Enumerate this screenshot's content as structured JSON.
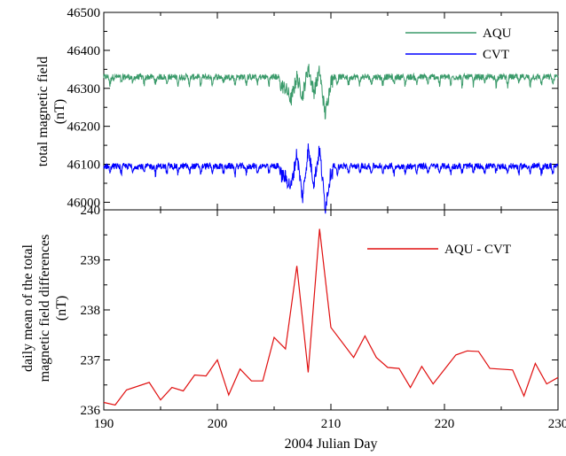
{
  "chart_data": [
    {
      "type": "line",
      "panel": "top",
      "ylabel_lines": [
        "total magnetic field",
        "(nT)"
      ],
      "xlim": [
        190,
        230
      ],
      "ylim": [
        45980,
        46500
      ],
      "yticks": [
        46000,
        46100,
        46200,
        46300,
        46400,
        46500
      ],
      "y_tick_labels": [
        "46000",
        "46100",
        "46200",
        "46300",
        "46400",
        "46500"
      ],
      "grid": false,
      "legend_placement": "top-right",
      "series": [
        {
          "name": "AQU",
          "color": "#3a9a6a",
          "baseline": 46330,
          "x": [
            190,
            195,
            200,
            203,
            205,
            206,
            206.5,
            207,
            207.5,
            208,
            208.5,
            209,
            209.5,
            210,
            215,
            220,
            225,
            230
          ],
          "y": [
            46330,
            46328,
            46330,
            46325,
            46320,
            46300,
            46270,
            46330,
            46280,
            46355,
            46290,
            46345,
            46230,
            46320,
            46325,
            46330,
            46325,
            46332
          ]
        },
        {
          "name": "CVT",
          "color": "#0000ff",
          "baseline": 46095,
          "x": [
            190,
            195,
            200,
            203,
            205,
            206,
            206.5,
            207,
            207.5,
            208,
            208.5,
            209,
            209.5,
            210,
            215,
            220,
            225,
            230
          ],
          "y": [
            46095,
            46093,
            46095,
            46090,
            46085,
            46065,
            46040,
            46130,
            46010,
            46140,
            46050,
            46140,
            45985,
            46080,
            46090,
            46093,
            46090,
            46098
          ]
        }
      ]
    },
    {
      "type": "line",
      "panel": "bottom",
      "ylabel_lines": [
        "daily mean of the total",
        "magnetic field differences",
        "(nT)"
      ],
      "xlabel": "2004 Julian Day",
      "xlim": [
        190,
        230
      ],
      "xticks": [
        190,
        200,
        210,
        220,
        230
      ],
      "x_tick_labels": [
        "190",
        "200",
        "210",
        "220",
        "230"
      ],
      "ylim": [
        236,
        240
      ],
      "yticks": [
        236,
        237,
        238,
        239,
        240
      ],
      "y_tick_labels": [
        "236",
        "237",
        "238",
        "239",
        "240"
      ],
      "grid": false,
      "legend_placement": "top-right",
      "series": [
        {
          "name": "AQU - CVT",
          "color": "#e01010",
          "x": [
            190,
            191,
            192,
            194,
            195,
            196,
            197,
            198,
            199,
            200,
            201,
            202,
            203,
            204,
            205,
            206,
            207,
            208,
            209,
            210,
            212,
            213,
            214,
            215,
            216,
            217,
            218,
            219,
            221,
            222,
            223,
            224,
            226,
            227,
            228,
            229,
            230
          ],
          "y": [
            236.15,
            236.1,
            236.4,
            236.55,
            236.2,
            236.45,
            236.38,
            236.7,
            236.68,
            237.0,
            236.3,
            236.82,
            236.58,
            236.58,
            237.45,
            237.22,
            238.88,
            236.75,
            239.62,
            237.65,
            237.05,
            237.48,
            237.05,
            236.85,
            236.83,
            236.45,
            236.87,
            236.52,
            237.1,
            237.18,
            237.17,
            236.83,
            236.8,
            236.28,
            236.93,
            236.52,
            236.65
          ]
        }
      ]
    }
  ]
}
